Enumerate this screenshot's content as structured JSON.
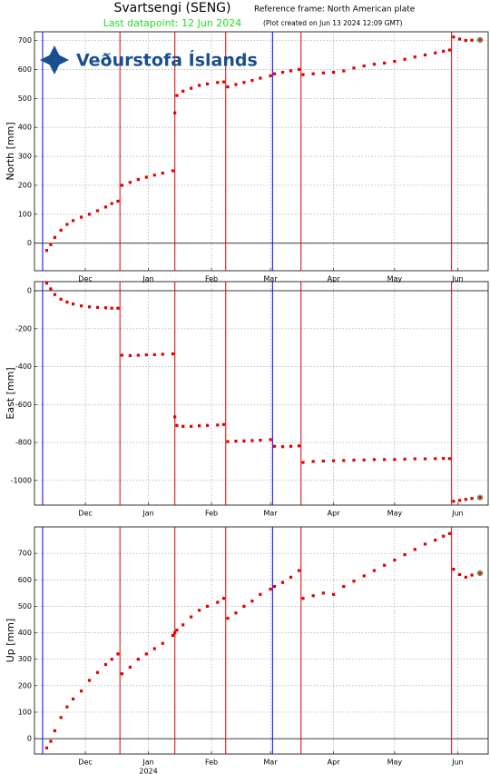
{
  "header": {
    "title": "Svartsengi (SENG)",
    "reference_frame": "Reference frame: North American plate",
    "last_datapoint": "Last datapoint: 12 Jun 2024",
    "plot_created": "(Plot created on Jun 13 2024 12:09 GMT)",
    "logo": "Veðurstofa Íslands"
  },
  "chart_data": [
    {
      "type": "scatter",
      "ylabel": "North [mm]",
      "color": "#e00000",
      "grid": true,
      "xlim": [
        "2023-11-06",
        "2024-06-16"
      ],
      "xticks": [
        {
          "value": "2023-12-01",
          "label": "Dec"
        },
        {
          "value": "2024-01-01",
          "label": "Jan"
        },
        {
          "value": "2024-02-01",
          "label": "Feb"
        },
        {
          "value": "2024-03-01",
          "label": "Mar"
        },
        {
          "value": "2024-04-01",
          "label": "Apr"
        },
        {
          "value": "2024-05-01",
          "label": "May"
        },
        {
          "value": "2024-06-01",
          "label": "Jun"
        }
      ],
      "ylim": [
        -95,
        730
      ],
      "yticks": [
        0,
        100,
        200,
        300,
        400,
        500,
        600,
        700
      ],
      "event_lines": [
        {
          "x": "2023-11-10",
          "color": "#0000ff"
        },
        {
          "x": "2023-12-18",
          "color": "#e00000"
        },
        {
          "x": "2024-01-14",
          "color": "#e00000"
        },
        {
          "x": "2024-02-08",
          "color": "#e00000"
        },
        {
          "x": "2024-03-02",
          "color": "#0000ff"
        },
        {
          "x": "2024-03-16",
          "color": "#e00000"
        },
        {
          "x": "2024-05-29",
          "color": "#e00000"
        }
      ],
      "x": [
        "2023-11-12",
        "2023-11-14",
        "2023-11-16",
        "2023-11-19",
        "2023-11-22",
        "2023-11-25",
        "2023-11-29",
        "2023-12-03",
        "2023-12-07",
        "2023-12-11",
        "2023-12-14",
        "2023-12-17",
        "2023-12-19",
        "2023-12-23",
        "2023-12-27",
        "2023-12-31",
        "2024-01-04",
        "2024-01-08",
        "2024-01-13",
        "2024-01-14",
        "2024-01-15",
        "2024-01-18",
        "2024-01-22",
        "2024-01-26",
        "2024-01-30",
        "2024-02-04",
        "2024-02-07",
        "2024-02-09",
        "2024-02-13",
        "2024-02-17",
        "2024-02-21",
        "2024-02-25",
        "2024-03-01",
        "2024-03-03",
        "2024-03-07",
        "2024-03-11",
        "2024-03-15",
        "2024-03-17",
        "2024-03-22",
        "2024-03-27",
        "2024-04-01",
        "2024-04-06",
        "2024-04-11",
        "2024-04-16",
        "2024-04-21",
        "2024-04-26",
        "2024-05-01",
        "2024-05-06",
        "2024-05-11",
        "2024-05-16",
        "2024-05-21",
        "2024-05-25",
        "2024-05-28",
        "2024-05-30",
        "2024-06-02",
        "2024-06-05",
        "2024-06-08",
        "2024-06-12"
      ],
      "values": [
        -25,
        -5,
        20,
        45,
        65,
        78,
        90,
        100,
        112,
        125,
        137,
        145,
        200,
        210,
        220,
        228,
        235,
        242,
        250,
        450,
        510,
        525,
        535,
        545,
        550,
        555,
        557,
        540,
        548,
        555,
        562,
        570,
        578,
        585,
        590,
        595,
        600,
        582,
        585,
        588,
        590,
        595,
        605,
        612,
        618,
        622,
        628,
        635,
        643,
        650,
        657,
        663,
        667,
        712,
        705,
        700,
        701,
        702
      ]
    },
    {
      "type": "scatter",
      "ylabel": "East [mm]",
      "color": "#e00000",
      "grid": true,
      "xlim": [
        "2023-11-06",
        "2024-06-16"
      ],
      "xticks": [
        {
          "value": "2023-12-01",
          "label": "Dec"
        },
        {
          "value": "2024-01-01",
          "label": "Jan"
        },
        {
          "value": "2024-02-01",
          "label": "Feb"
        },
        {
          "value": "2024-03-01",
          "label": "Mar"
        },
        {
          "value": "2024-04-01",
          "label": "Apr"
        },
        {
          "value": "2024-05-01",
          "label": "May"
        },
        {
          "value": "2024-06-01",
          "label": "Jun"
        }
      ],
      "ylim": [
        -1130,
        48
      ],
      "yticks": [
        -1000,
        -800,
        -600,
        -400,
        -200,
        0
      ],
      "event_lines": [
        {
          "x": "2023-11-10",
          "color": "#0000ff"
        },
        {
          "x": "2023-12-18",
          "color": "#e00000"
        },
        {
          "x": "2024-01-14",
          "color": "#e00000"
        },
        {
          "x": "2024-02-08",
          "color": "#e00000"
        },
        {
          "x": "2024-03-02",
          "color": "#0000ff"
        },
        {
          "x": "2024-03-16",
          "color": "#e00000"
        },
        {
          "x": "2024-05-29",
          "color": "#e00000"
        }
      ],
      "x": [
        "2023-11-12",
        "2023-11-14",
        "2023-11-16",
        "2023-11-19",
        "2023-11-22",
        "2023-11-25",
        "2023-11-29",
        "2023-12-03",
        "2023-12-07",
        "2023-12-11",
        "2023-12-14",
        "2023-12-17",
        "2023-12-19",
        "2023-12-23",
        "2023-12-27",
        "2023-12-31",
        "2024-01-04",
        "2024-01-08",
        "2024-01-13",
        "2024-01-14",
        "2024-01-15",
        "2024-01-18",
        "2024-01-22",
        "2024-01-26",
        "2024-01-30",
        "2024-02-04",
        "2024-02-07",
        "2024-02-09",
        "2024-02-13",
        "2024-02-17",
        "2024-02-21",
        "2024-02-25",
        "2024-03-01",
        "2024-03-03",
        "2024-03-07",
        "2024-03-11",
        "2024-03-15",
        "2024-03-17",
        "2024-03-22",
        "2024-03-27",
        "2024-04-01",
        "2024-04-06",
        "2024-04-11",
        "2024-04-16",
        "2024-04-21",
        "2024-04-26",
        "2024-05-01",
        "2024-05-06",
        "2024-05-11",
        "2024-05-16",
        "2024-05-21",
        "2024-05-25",
        "2024-05-28",
        "2024-05-30",
        "2024-06-02",
        "2024-06-05",
        "2024-06-08",
        "2024-06-12"
      ],
      "values": [
        40,
        10,
        -20,
        -45,
        -60,
        -70,
        -80,
        -85,
        -88,
        -90,
        -92,
        -92,
        -340,
        -342,
        -340,
        -338,
        -337,
        -335,
        -333,
        -665,
        -710,
        -715,
        -715,
        -712,
        -710,
        -708,
        -705,
        -795,
        -793,
        -792,
        -790,
        -788,
        -785,
        -820,
        -822,
        -820,
        -818,
        -905,
        -900,
        -898,
        -896,
        -895,
        -893,
        -892,
        -890,
        -890,
        -890,
        -888,
        -886,
        -886,
        -885,
        -884,
        -885,
        -1110,
        -1105,
        -1100,
        -1095,
        -1090
      ]
    },
    {
      "type": "scatter",
      "ylabel": "Up [mm]",
      "color": "#e00000",
      "grid": true,
      "year_label": "2024",
      "xlim": [
        "2023-11-06",
        "2024-06-16"
      ],
      "xticks": [
        {
          "value": "2023-12-01",
          "label": "Dec"
        },
        {
          "value": "2024-01-01",
          "label": "Jan"
        },
        {
          "value": "2024-02-01",
          "label": "Feb"
        },
        {
          "value": "2024-03-01",
          "label": "Mar"
        },
        {
          "value": "2024-04-01",
          "label": "Apr"
        },
        {
          "value": "2024-05-01",
          "label": "May"
        },
        {
          "value": "2024-06-01",
          "label": "Jun"
        }
      ],
      "ylim": [
        -58,
        800
      ],
      "yticks": [
        0,
        100,
        200,
        300,
        400,
        500,
        600,
        700
      ],
      "event_lines": [
        {
          "x": "2023-11-10",
          "color": "#0000ff"
        },
        {
          "x": "2023-12-18",
          "color": "#e00000"
        },
        {
          "x": "2024-01-14",
          "color": "#e00000"
        },
        {
          "x": "2024-02-08",
          "color": "#e00000"
        },
        {
          "x": "2024-03-02",
          "color": "#0000ff"
        },
        {
          "x": "2024-03-16",
          "color": "#e00000"
        },
        {
          "x": "2024-05-29",
          "color": "#e00000"
        }
      ],
      "x": [
        "2023-11-12",
        "2023-11-14",
        "2023-11-16",
        "2023-11-19",
        "2023-11-22",
        "2023-11-25",
        "2023-11-29",
        "2023-12-03",
        "2023-12-07",
        "2023-12-11",
        "2023-12-14",
        "2023-12-17",
        "2023-12-19",
        "2023-12-23",
        "2023-12-27",
        "2023-12-31",
        "2024-01-04",
        "2024-01-08",
        "2024-01-13",
        "2024-01-14",
        "2024-01-15",
        "2024-01-18",
        "2024-01-22",
        "2024-01-26",
        "2024-01-30",
        "2024-02-04",
        "2024-02-07",
        "2024-02-09",
        "2024-02-13",
        "2024-02-17",
        "2024-02-21",
        "2024-02-25",
        "2024-03-01",
        "2024-03-03",
        "2024-03-07",
        "2024-03-11",
        "2024-03-15",
        "2024-03-17",
        "2024-03-22",
        "2024-03-27",
        "2024-04-01",
        "2024-04-06",
        "2024-04-11",
        "2024-04-16",
        "2024-04-21",
        "2024-04-26",
        "2024-05-01",
        "2024-05-06",
        "2024-05-11",
        "2024-05-16",
        "2024-05-21",
        "2024-05-25",
        "2024-05-28",
        "2024-05-30",
        "2024-06-02",
        "2024-06-05",
        "2024-06-08",
        "2024-06-12"
      ],
      "values": [
        -35,
        -10,
        30,
        80,
        120,
        150,
        180,
        220,
        250,
        280,
        300,
        320,
        245,
        270,
        300,
        320,
        340,
        360,
        390,
        400,
        410,
        430,
        460,
        485,
        500,
        515,
        530,
        455,
        475,
        500,
        520,
        545,
        565,
        575,
        590,
        610,
        635,
        530,
        540,
        550,
        545,
        575,
        595,
        615,
        635,
        655,
        675,
        695,
        715,
        735,
        750,
        765,
        775,
        640,
        620,
        610,
        618,
        625
      ]
    }
  ]
}
